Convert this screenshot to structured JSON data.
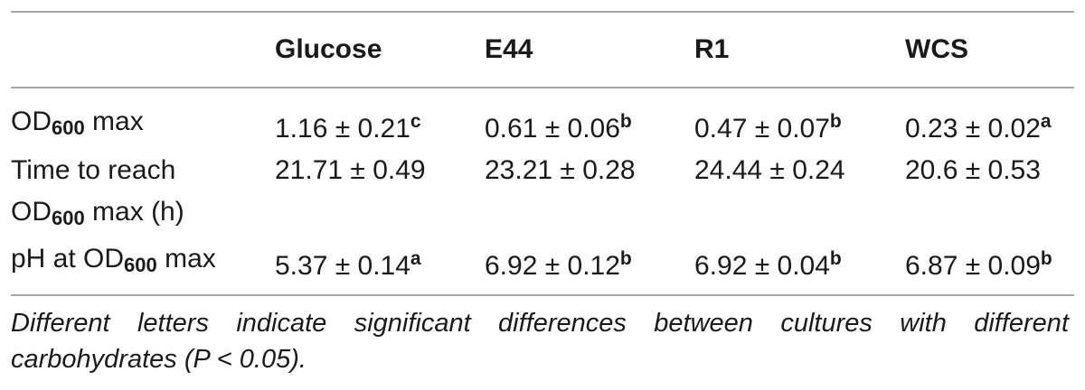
{
  "table": {
    "header": {
      "blank": "",
      "cols": [
        "Glucose",
        "E44",
        "R1",
        "WCS"
      ]
    },
    "rows": [
      {
        "label_main": "OD",
        "label_sub": "600",
        "label_rest": " max",
        "cells": [
          {
            "value": "1.16 ± 0.21",
            "sup": "c"
          },
          {
            "value": "0.61 ± 0.06",
            "sup": "b"
          },
          {
            "value": "0.47 ± 0.07",
            "sup": "b"
          },
          {
            "value": "0.23 ± 0.02",
            "sup": "a"
          }
        ]
      },
      {
        "label_line1": "Time to reach",
        "label_main": "OD",
        "label_sub": "600",
        "label_rest": " max (h)",
        "cells": [
          {
            "value": "21.71 ± 0.49",
            "sup": ""
          },
          {
            "value": "23.21 ± 0.28",
            "sup": ""
          },
          {
            "value": "24.44 ± 0.24",
            "sup": ""
          },
          {
            "value": "20.6 ± 0.53",
            "sup": ""
          }
        ]
      },
      {
        "label_main": "pH at OD",
        "label_sub": "600",
        "label_rest": " max",
        "cells": [
          {
            "value": "5.37 ± 0.14",
            "sup": "a"
          },
          {
            "value": "6.92 ± 0.12",
            "sup": "b"
          },
          {
            "value": "6.92 ± 0.04",
            "sup": "b"
          },
          {
            "value": "6.87 ± 0.09",
            "sup": "b"
          }
        ]
      }
    ],
    "footnote": "Different letters indicate significant differences between cultures with different carbohydrates (P < 0.05)."
  }
}
